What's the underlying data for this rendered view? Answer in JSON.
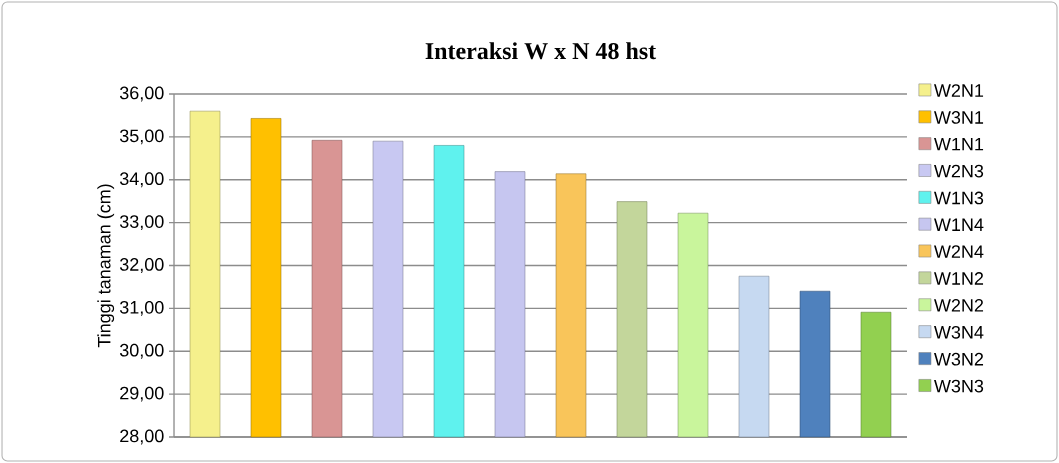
{
  "chart_data": {
    "type": "bar",
    "title": "Interaksi W x N 48 hst",
    "ylabel": "Tinggi tanaman (cm)",
    "categories": [
      null
    ],
    "series": [
      {
        "name": "W2N1",
        "color": "#f5f08c",
        "values": [
          35.6
        ]
      },
      {
        "name": "W3N1",
        "color": "#ffc000",
        "values": [
          35.43
        ]
      },
      {
        "name": "W1N1",
        "color": "#d99594",
        "values": [
          34.92
        ]
      },
      {
        "name": "W2N3",
        "color": "#c8c8f2",
        "values": [
          34.9
        ]
      },
      {
        "name": "W1N3",
        "color": "#5ff2ee",
        "values": [
          34.8
        ]
      },
      {
        "name": "W1N4",
        "color": "#c6c6f0",
        "values": [
          34.19
        ]
      },
      {
        "name": "W2N4",
        "color": "#f9c55a",
        "values": [
          34.14
        ]
      },
      {
        "name": "W1N2",
        "color": "#c3d69b",
        "values": [
          33.49
        ]
      },
      {
        "name": "W2N2",
        "color": "#c9f59c",
        "values": [
          33.22
        ]
      },
      {
        "name": "W3N4",
        "color": "#c6d9f1",
        "values": [
          31.75
        ]
      },
      {
        "name": "W3N2",
        "color": "#4f81bd",
        "values": [
          31.4
        ]
      },
      {
        "name": "W3N3",
        "color": "#92d050",
        "values": [
          30.91
        ]
      }
    ],
    "ylim": [
      28,
      36
    ],
    "yticks": [
      {
        "value": 28,
        "label": "28,00"
      },
      {
        "value": 29,
        "label": "29,00"
      },
      {
        "value": 30,
        "label": "30,00"
      },
      {
        "value": 31,
        "label": "31,00"
      },
      {
        "value": 32,
        "label": "32,00"
      },
      {
        "value": 33,
        "label": "33,00"
      },
      {
        "value": 34,
        "label": "34,00"
      },
      {
        "value": 35,
        "label": "35,00"
      },
      {
        "value": 36,
        "label": "36,00"
      }
    ],
    "grid": "y",
    "legend": "right"
  }
}
